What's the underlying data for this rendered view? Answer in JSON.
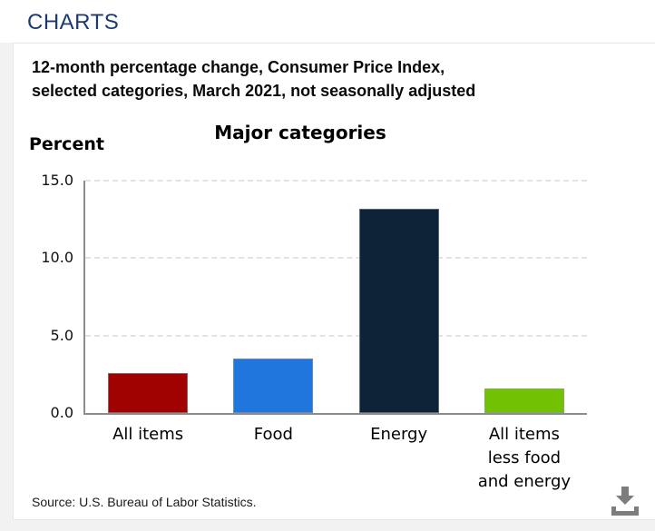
{
  "header": {
    "title": "CHARTS"
  },
  "chart": {
    "subtitle_lines": [
      "12-month percentage change, Consumer Price Index,",
      "selected categories, March 2021, not seasonally adjusted"
    ],
    "unit_label": "Percent",
    "title": "Major categories",
    "source": "Source: U.S. Bureau of Labor Statistics.",
    "download_icon": "download-icon"
  },
  "chart_data": {
    "type": "bar",
    "title": "Major categories",
    "categories": [
      "All items",
      "Food",
      "Energy",
      "All items\nless food\nand energy"
    ],
    "values": [
      2.6,
      3.5,
      13.2,
      1.6
    ],
    "bar_colors": [
      "#a00101",
      "#2176dd",
      "#0e2337",
      "#72c203"
    ],
    "ylabel": "Percent",
    "ylim": [
      0,
      15
    ],
    "yticks": [
      15,
      10,
      5,
      0
    ],
    "ytick_labels": [
      "15.0",
      "10.0",
      "5.0",
      "0.0"
    ],
    "grid": "horizontal-dashed",
    "legend": "none"
  },
  "colors": {
    "heading_blue": "#1c3a6e",
    "axis_gray": "#8c8c8c",
    "gridline_gray": "#e3e3e3",
    "page_background": "#f2f2f2",
    "card_background": "#ffffff",
    "download_icon_gray": "#7d7d7d"
  }
}
